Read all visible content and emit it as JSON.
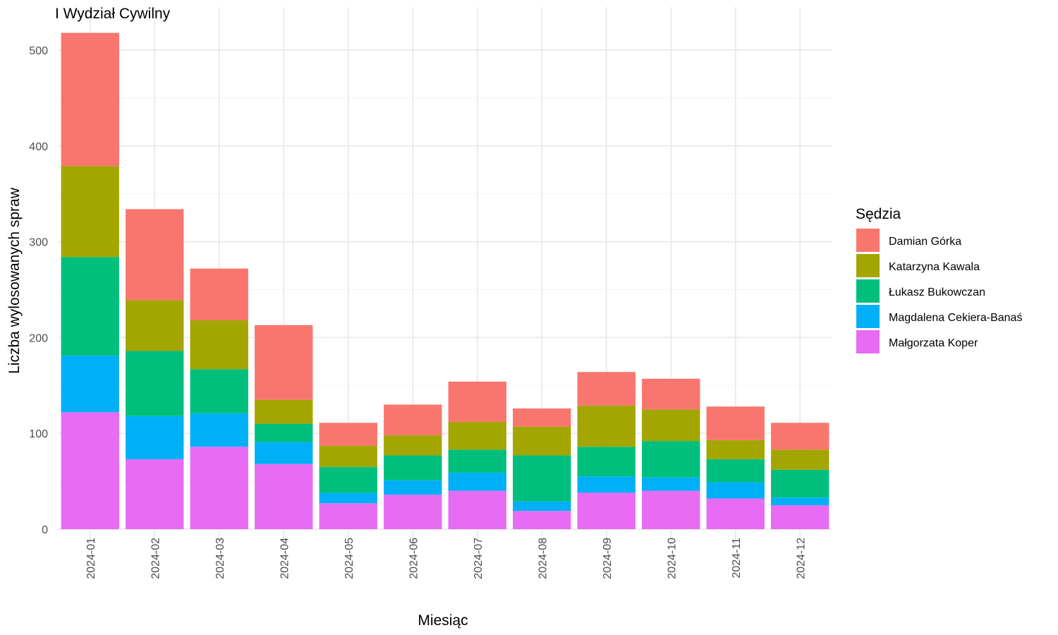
{
  "chart_data": {
    "type": "bar",
    "stacked": true,
    "title": "I Wydział Cywilny",
    "xlabel": "Miesiąc",
    "ylabel": "Liczba wylosowanych spraw",
    "ylim": [
      0,
      530
    ],
    "yticks": [
      0,
      100,
      200,
      300,
      400,
      500
    ],
    "grid": true,
    "legend_position": "right",
    "legend_title": "Sędzia",
    "categories": [
      "2024-01",
      "2024-02",
      "2024-03",
      "2024-04",
      "2024-05",
      "2024-06",
      "2024-07",
      "2024-08",
      "2024-09",
      "2024-10",
      "2024-11",
      "2024-12"
    ],
    "series": [
      {
        "name": "Małgorzata Koper",
        "color": "#E76BF3",
        "values": [
          122,
          73,
          86,
          68,
          27,
          36,
          40,
          19,
          38,
          40,
          32,
          25
        ]
      },
      {
        "name": "Magdalena Cekiera-Banaś",
        "color": "#00B0F6",
        "values": [
          59,
          45,
          35,
          23,
          11,
          15,
          19,
          10,
          17,
          14,
          17,
          8
        ]
      },
      {
        "name": "Łukasz Bukowczan",
        "color": "#00BF7D",
        "values": [
          103,
          68,
          46,
          19,
          27,
          26,
          24,
          48,
          31,
          38,
          24,
          29
        ]
      },
      {
        "name": "Katarzyna Kawala",
        "color": "#A3A500",
        "values": [
          95,
          53,
          51,
          25,
          22,
          21,
          29,
          30,
          43,
          33,
          20,
          21
        ]
      },
      {
        "name": "Damian Górka",
        "color": "#F8766D",
        "values": [
          139,
          95,
          54,
          78,
          24,
          32,
          42,
          19,
          35,
          32,
          35,
          28
        ]
      }
    ],
    "legend_order": [
      "Damian Górka",
      "Katarzyna Kawala",
      "Łukasz Bukowczan",
      "Magdalena Cekiera-Banaś",
      "Małgorzata Koper"
    ]
  }
}
